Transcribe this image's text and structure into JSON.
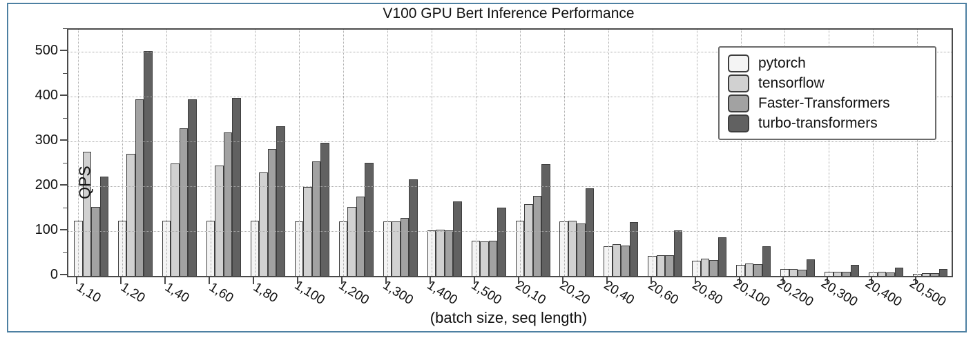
{
  "window": {
    "frame_border_color": "#4d80a2",
    "background_color": "#ffffff"
  },
  "chart_data": {
    "type": "bar",
    "title": "V100 GPU Bert Inference Performance",
    "xlabel": "(batch size, seq length)",
    "ylabel": "QPS",
    "ylim": [
      0,
      550
    ],
    "yticks": [
      0,
      100,
      200,
      300,
      400,
      500
    ],
    "yticks_minor": [
      50,
      150,
      250,
      350,
      450,
      550
    ],
    "grid": "dotted, horizontal and vertical",
    "legend_position": "upper right",
    "x_tick_rotation_deg": -30,
    "bar_edge_color": "#3d3d3d",
    "categories": [
      "1,10",
      "1,20",
      "1,40",
      "1,60",
      "1,80",
      "1,100",
      "1,200",
      "1,300",
      "1,400",
      "1,500",
      "20,10",
      "20,20",
      "20,40",
      "20,60",
      "20,80",
      "20,100",
      "20,200",
      "20,300",
      "20,400",
      "20,500"
    ],
    "series": [
      {
        "name": "pytorch",
        "color": "#f4f4f4",
        "values": [
          124,
          123,
          123,
          123,
          123,
          122,
          122,
          121,
          101,
          78,
          123,
          122,
          67,
          45,
          34,
          25,
          15,
          10,
          8,
          5
        ]
      },
      {
        "name": "tensorflow",
        "color": "#d1d1d1",
        "values": [
          277,
          273,
          251,
          247,
          231,
          199,
          154,
          121,
          103,
          77,
          160,
          124,
          71,
          46,
          38,
          27,
          15,
          10,
          9,
          6
        ]
      },
      {
        "name": "Faster-Transformers",
        "color": "#a2a2a2",
        "values": [
          154,
          394,
          330,
          320,
          283,
          255,
          177,
          129,
          102,
          79,
          178,
          117,
          68,
          46,
          36,
          26,
          14,
          10,
          8,
          6
        ]
      },
      {
        "name": "turbo-transformers",
        "color": "#616161",
        "values": [
          222,
          503,
          394,
          398,
          335,
          298,
          253,
          216,
          167,
          152,
          250,
          195,
          120,
          102,
          87,
          66,
          37,
          25,
          18,
          16
        ]
      }
    ]
  }
}
